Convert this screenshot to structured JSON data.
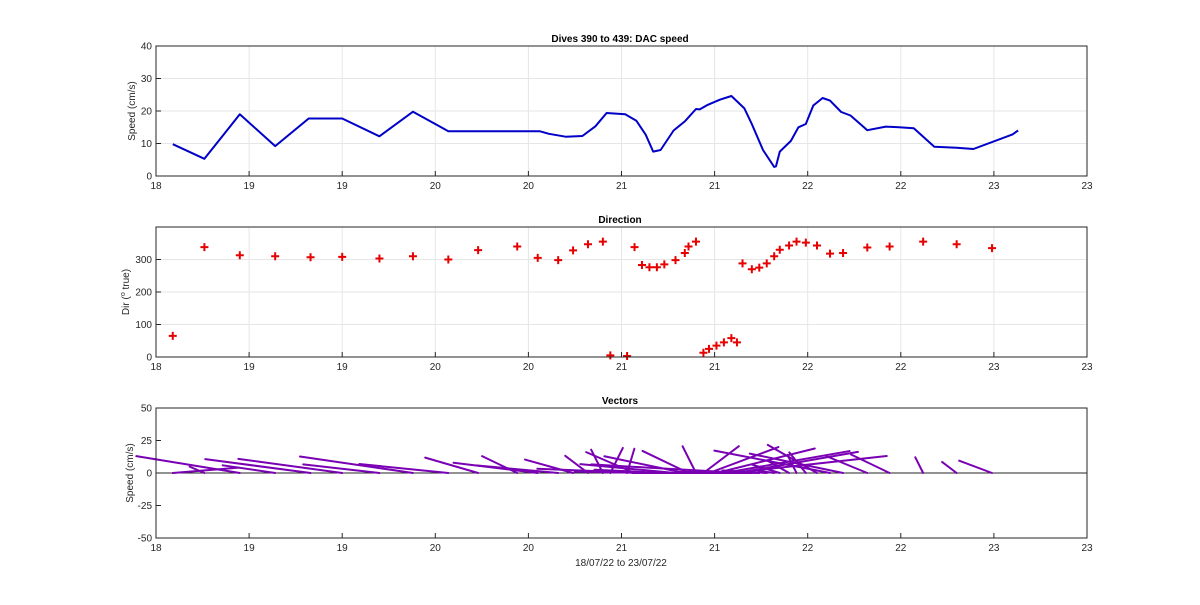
{
  "chart_data": [
    {
      "type": "line",
      "title": "Dives 390 to 439: DAC speed",
      "xlabel": "",
      "ylabel": "Speed (cm/s)",
      "xlim": [
        18.0,
        23.0
      ],
      "ylim": [
        0,
        40
      ],
      "xticks": [
        18,
        18.5,
        19,
        19.5,
        20,
        20.5,
        21,
        21.5,
        22,
        22.5,
        23
      ],
      "xtick_labels": [
        "18",
        "19",
        "19",
        "20",
        "20",
        "21",
        "21",
        "22",
        "22",
        "23",
        "23"
      ],
      "yticks": [
        0,
        10,
        20,
        30,
        40
      ],
      "grid": true,
      "color": "#0000c8",
      "series": [
        {
          "x": [
            18.09,
            18.26,
            18.45,
            18.64,
            18.82,
            19.0,
            19.2,
            19.38,
            19.57,
            19.73,
            19.93,
            20.06,
            20.11,
            20.2,
            20.29,
            20.36,
            20.42,
            20.52,
            20.58,
            20.63,
            20.67,
            20.71,
            20.78,
            20.84,
            20.9,
            20.92,
            20.96,
            21.03,
            21.09,
            21.16,
            21.2,
            21.26,
            21.32,
            21.33,
            21.35,
            21.41,
            21.45,
            21.49,
            21.53,
            21.58,
            21.62,
            21.68,
            21.73,
            21.82,
            21.92,
            21.99,
            22.07,
            22.18,
            22.3,
            22.39,
            22.6,
            22.63
          ],
          "y": [
            9.8,
            5.3,
            19.0,
            9.2,
            17.7,
            17.7,
            12.2,
            19.8,
            13.8,
            13.8,
            13.8,
            13.8,
            13.0,
            12.1,
            12.3,
            15.3,
            19.4,
            19.0,
            17.0,
            12.7,
            7.5,
            8.0,
            14.0,
            16.8,
            20.6,
            20.5,
            21.8,
            23.5,
            24.6,
            20.8,
            16.0,
            8.0,
            2.8,
            3.0,
            7.5,
            10.8,
            15.0,
            16.0,
            21.7,
            24.0,
            23.2,
            19.7,
            18.6,
            14.1,
            15.2,
            15.0,
            14.7,
            9.0,
            8.7,
            8.3,
            12.8,
            14.0
          ]
        }
      ]
    },
    {
      "type": "scatter",
      "title": "Direction",
      "xlabel": "",
      "ylabel": "Dir (° true)",
      "ylabel_prefix": "Dir (",
      "ylabel_degree": "o",
      "ylabel_suffix": " true)",
      "xlim": [
        18.0,
        23.0
      ],
      "ylim": [
        0,
        400
      ],
      "xticks": [
        18,
        18.5,
        19,
        19.5,
        20,
        20.5,
        21,
        21.5,
        22,
        22.5,
        23
      ],
      "xtick_labels": [
        "18",
        "19",
        "19",
        "20",
        "20",
        "21",
        "21",
        "22",
        "22",
        "23",
        "23"
      ],
      "yticks": [
        0,
        100,
        200,
        300
      ],
      "grid": true,
      "color": "#e60000",
      "marker": "+",
      "series": [
        {
          "x": [
            18.09,
            18.26,
            18.45,
            18.64,
            18.83,
            19.0,
            19.2,
            19.38,
            19.57,
            19.73,
            19.94,
            20.05,
            20.16,
            20.24,
            20.32,
            20.4,
            20.44,
            20.53,
            20.57,
            20.61,
            20.65,
            20.69,
            20.73,
            20.79,
            20.84,
            20.86,
            20.9,
            20.94,
            20.97,
            21.01,
            21.05,
            21.09,
            21.12,
            21.15,
            21.2,
            21.24,
            21.28,
            21.32,
            21.35,
            21.4,
            21.44,
            21.49,
            21.55,
            21.62,
            21.69,
            21.82,
            21.94,
            22.12,
            22.3,
            22.49
          ],
          "y": [
            65,
            338,
            313,
            310,
            307,
            308,
            303,
            310,
            300,
            329,
            340,
            305,
            298,
            328,
            347,
            355,
            5,
            3,
            338,
            283,
            276,
            276,
            285,
            298,
            320,
            340,
            355,
            13,
            25,
            35,
            45,
            58,
            45,
            288,
            270,
            275,
            288,
            310,
            330,
            343,
            355,
            352,
            343,
            318,
            320,
            337,
            340,
            355,
            347,
            335
          ]
        }
      ]
    },
    {
      "type": "quiver",
      "title": "Vectors",
      "xlabel": "18/07/22 to 23/07/22",
      "ylabel": "Speed (cm/s)",
      "xlim": [
        18.0,
        23.0
      ],
      "ylim": [
        -50,
        50
      ],
      "xticks": [
        18,
        18.5,
        19,
        19.5,
        20,
        20.5,
        21,
        21.5,
        22,
        22.5,
        23
      ],
      "xtick_labels": [
        "18",
        "19",
        "19",
        "20",
        "20",
        "21",
        "21",
        "22",
        "22",
        "23",
        "23"
      ],
      "yticks": [
        -50,
        -25,
        0,
        25,
        50
      ],
      "ytick_labels": [
        "-50",
        "-25",
        "0",
        "25",
        "50"
      ],
      "grid": false,
      "color": "#7a00b4",
      "zero_line": true
    }
  ]
}
